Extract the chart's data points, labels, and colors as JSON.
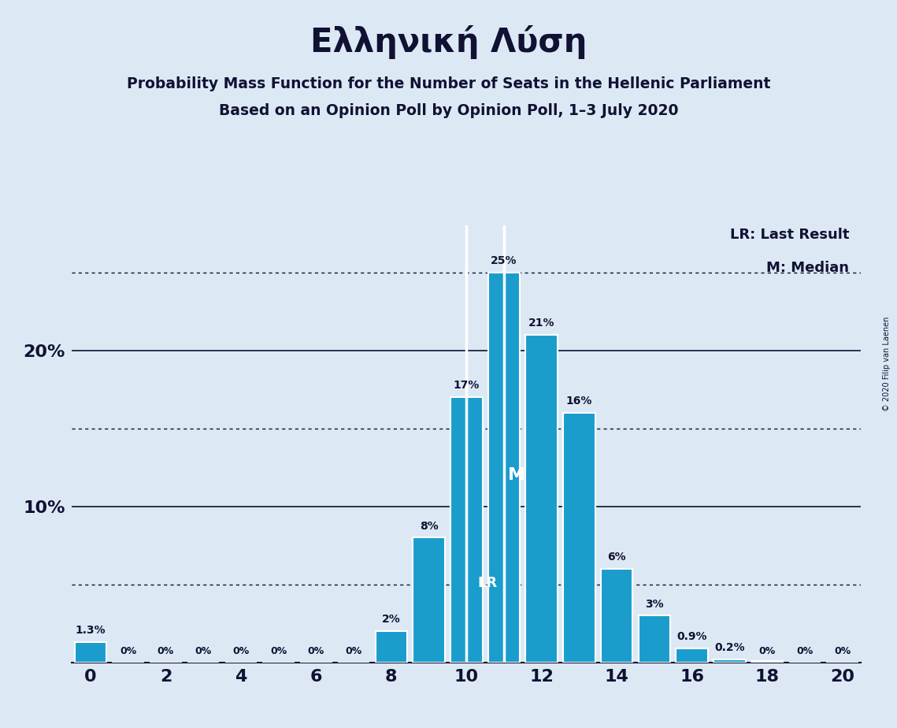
{
  "title": "Ελληνική Λύση",
  "subtitle1": "Probability Mass Function for the Number of Seats in the Hellenic Parliament",
  "subtitle2": "Based on an Opinion Poll by Opinion Poll, 1–3 July 2020",
  "copyright": "© 2020 Filip van Laenen",
  "seats": [
    0,
    1,
    2,
    3,
    4,
    5,
    6,
    7,
    8,
    9,
    10,
    11,
    12,
    13,
    14,
    15,
    16,
    17,
    18,
    19,
    20
  ],
  "probabilities": [
    1.3,
    0,
    0,
    0,
    0,
    0,
    0,
    0,
    2,
    8,
    17,
    25,
    21,
    16,
    6,
    3,
    0.9,
    0.2,
    0.1,
    0,
    0
  ],
  "bar_color": "#1a9dcc",
  "background_color": "#dce9f5",
  "last_result": 10,
  "median": 11,
  "legend_lr": "LR: Last Result",
  "legend_m": "M: Median",
  "xlim": [
    -0.5,
    20.5
  ],
  "ylim": [
    0,
    28
  ],
  "hlines_solid": [
    10,
    20
  ],
  "hlines_dotted": [
    5,
    15,
    25
  ],
  "bar_width": 0.85
}
